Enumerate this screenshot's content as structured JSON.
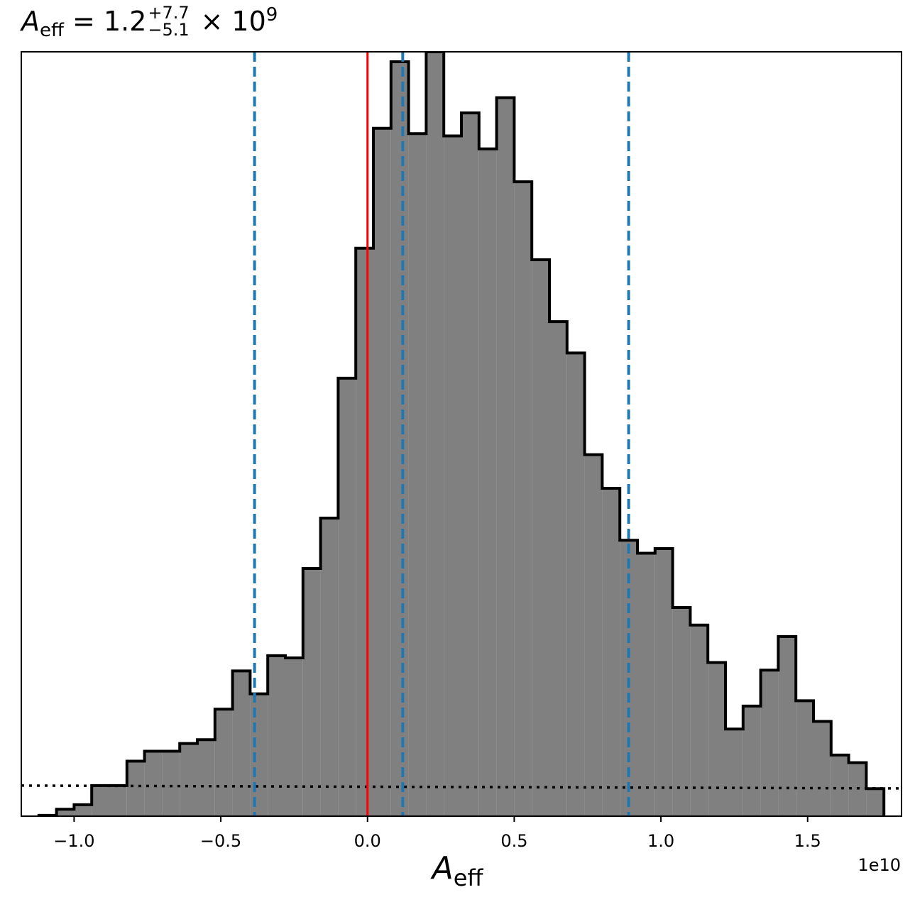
{
  "title": {
    "symbol": "A",
    "subscript": "eff",
    "equals": "=",
    "value": "1.2",
    "upper_err": "+7.7",
    "lower_err": "−5.1",
    "times": "×",
    "base": "10",
    "exponent": "9"
  },
  "xlabel": {
    "symbol": "A",
    "subscript": "eff"
  },
  "offset_text": "1e10",
  "chart_data": {
    "type": "histogram",
    "xlim": [
      -1.18,
      1.82
    ],
    "ylim": [
      0,
      1
    ],
    "ticks": [
      -1.0,
      -0.5,
      0.0,
      0.5,
      1.0,
      1.5
    ],
    "tick_labels": [
      "−1.0",
      "−0.5",
      "0.0",
      "0.5",
      "1.0",
      "1.5"
    ],
    "x_scale": "1e10",
    "grid": false,
    "bin_edges": [
      -1.12,
      -1.06,
      -1.0,
      -0.94,
      -0.88,
      -0.82,
      -0.76,
      -0.7,
      -0.64,
      -0.58,
      -0.52,
      -0.46,
      -0.4,
      -0.34,
      -0.28,
      -0.22,
      -0.16,
      -0.1,
      -0.04,
      0.02,
      0.08,
      0.14,
      0.2,
      0.26,
      0.32,
      0.38,
      0.44,
      0.5,
      0.56,
      0.62,
      0.68,
      0.74,
      0.8,
      0.86,
      0.92,
      0.98,
      1.04,
      1.1,
      1.16,
      1.22,
      1.28,
      1.34,
      1.4,
      1.46,
      1.52,
      1.58,
      1.64,
      1.7,
      1.76
    ],
    "counts": [
      0.001,
      0.009,
      0.015,
      0.04,
      0.04,
      0.072,
      0.085,
      0.085,
      0.095,
      0.1,
      0.14,
      0.19,
      0.16,
      0.21,
      0.207,
      0.324,
      0.39,
      0.573,
      0.743,
      0.9,
      0.987,
      0.893,
      1.0,
      0.89,
      0.92,
      0.873,
      0.94,
      0.83,
      0.728,
      0.647,
      0.606,
      0.473,
      0.429,
      0.361,
      0.344,
      0.35,
      0.273,
      0.25,
      0.201,
      0.114,
      0.144,
      0.191,
      0.235,
      0.151,
      0.124,
      0.08,
      0.07,
      0.036
    ],
    "median": 0.12,
    "ci_lower": -0.385,
    "ci_upper": 0.89,
    "reference_line": 0.0,
    "colors": {
      "fill": "#808080",
      "edge": "#000000",
      "ci_lines": "#1f77b4",
      "reference": "#ff0000",
      "prior": "#000000"
    },
    "prior_line_level": 0.04
  }
}
